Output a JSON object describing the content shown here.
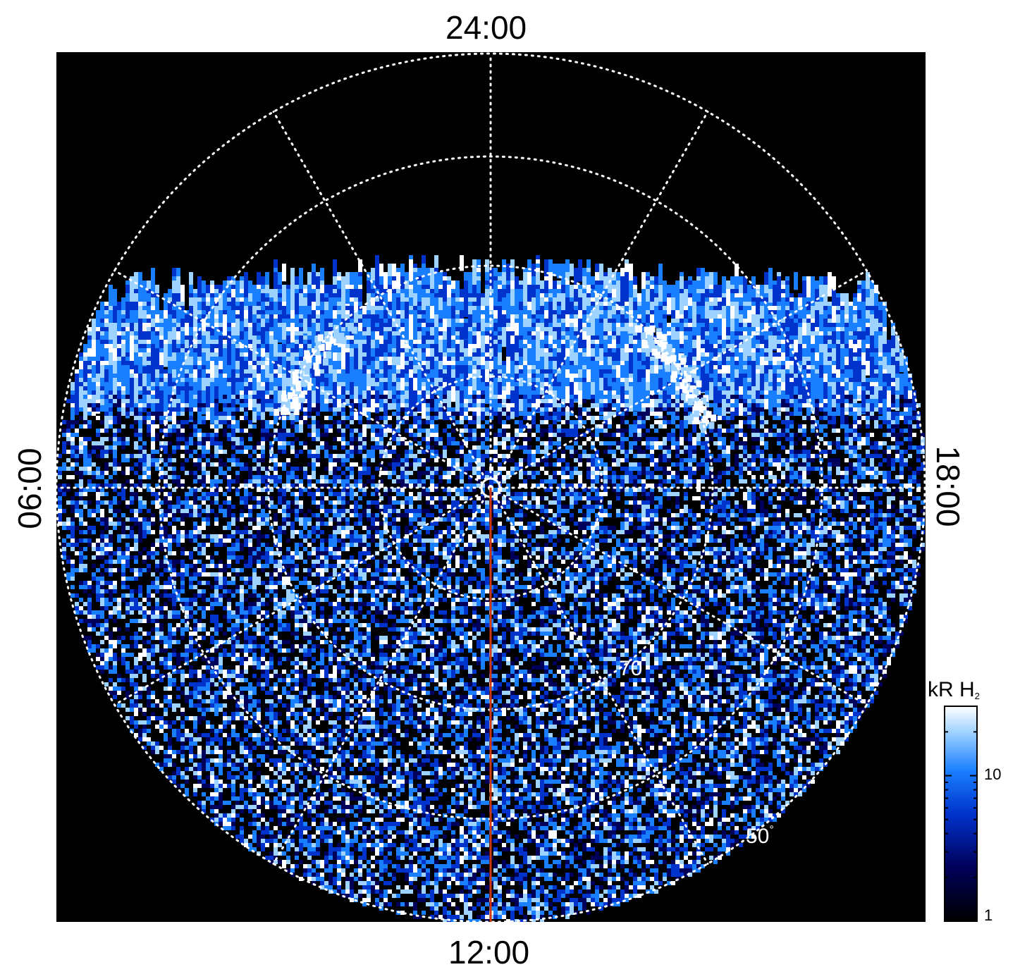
{
  "local_time_labels": {
    "top": "24:00",
    "bottom": "12:00",
    "left": "06:00",
    "right": "18:00"
  },
  "latitude_labels": {
    "lat70": "70",
    "lat50": "50",
    "degree_symbol": "°"
  },
  "colorbar": {
    "unit": "kR H",
    "unit_subscript": "2",
    "ticks": [
      "10",
      "1"
    ],
    "scale": "log",
    "range": [
      1,
      30
    ],
    "colors": [
      "#000000",
      "#00005a",
      "#0033cc",
      "#1a7fff",
      "#9fd3ff",
      "#ffffff"
    ]
  },
  "colors": {
    "background": "#000000",
    "grid": "#ffffff",
    "meridian_line": "#d03a10",
    "emission": "#1a7fff"
  }
}
